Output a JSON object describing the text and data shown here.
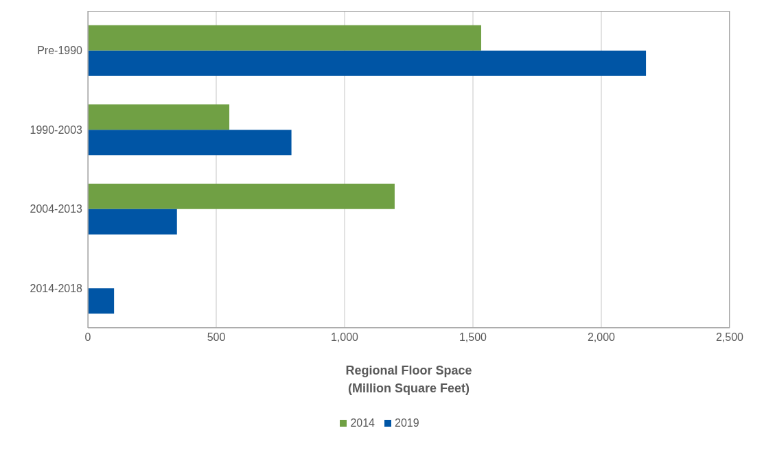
{
  "chart_data": {
    "type": "bar",
    "orientation": "horizontal",
    "categories": [
      "Pre-1990",
      "1990-2003",
      "2004-2013",
      "2014-2018"
    ],
    "series": [
      {
        "name": "2014",
        "color": "#70a044",
        "values": [
          1532,
          551,
          1195,
          null
        ]
      },
      {
        "name": "2019",
        "color": "#0055a5",
        "values": [
          2174,
          793,
          347,
          102
        ]
      }
    ],
    "xlabel": "Regional Floor Space\n(Million Square Feet)",
    "xlim": [
      0,
      2500
    ],
    "xticks": [
      0,
      500,
      {
        "value": 1000,
        "label": "1,000"
      },
      {
        "value": 1500,
        "label": "1,500"
      },
      {
        "value": 2000,
        "label": "2,000"
      },
      {
        "value": 2500,
        "label": "2,500"
      }
    ],
    "grid": "x",
    "legend": "bottom"
  }
}
